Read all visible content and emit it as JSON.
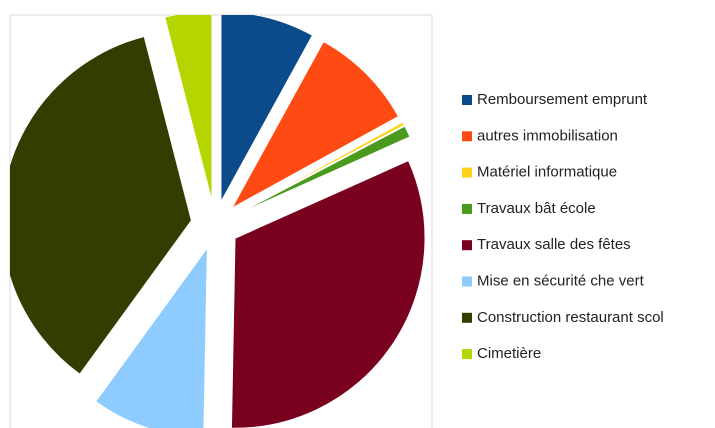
{
  "chart_data": {
    "type": "pie",
    "categories": [
      "Remboursement  emprunt",
      "autres immobilisation",
      "Matériel informatique",
      "Travaux bât école",
      "Travaux salle des fêtes",
      "Mise en sécurité che vert",
      "Construction restaurant scol",
      "Cimetière"
    ],
    "values": [
      8,
      9,
      0.3,
      1,
      32,
      9.7,
      36,
      4
    ],
    "colors": [
      "#0b4a8b",
      "#ff4a14",
      "#ffd21a",
      "#4a9a1e",
      "#7a0020",
      "#8ecbff",
      "#333d00",
      "#b5d400"
    ],
    "legend": "right"
  }
}
